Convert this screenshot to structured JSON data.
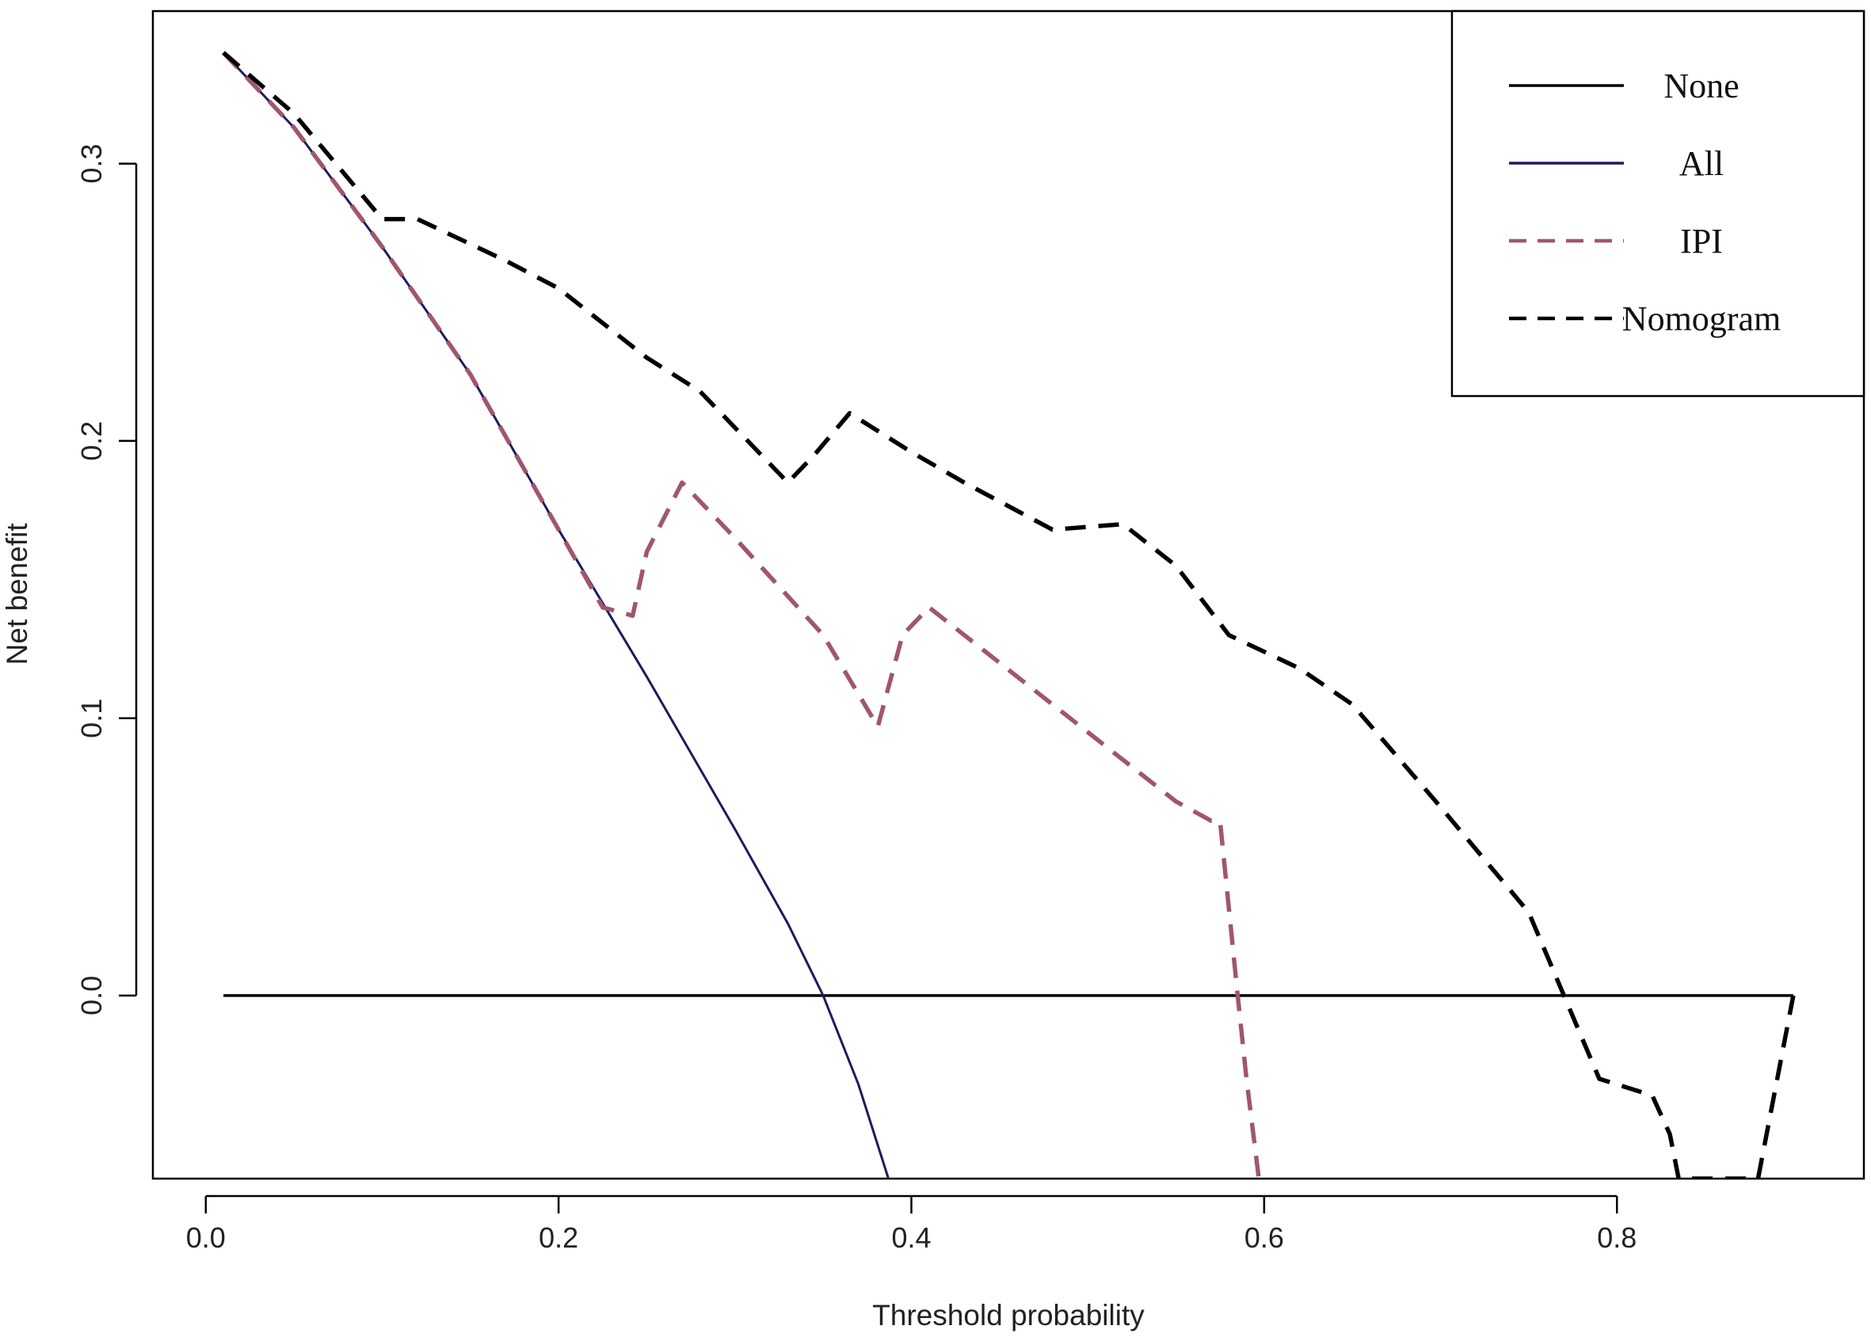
{
  "chart_data": {
    "type": "line",
    "title": "",
    "xlabel": "Threshold probability",
    "ylabel": "Net benefit",
    "xlim": [
      -0.03,
      0.94
    ],
    "ylim": [
      -0.066,
      0.355
    ],
    "x_ticks": [
      0.0,
      0.2,
      0.4,
      0.6,
      0.8
    ],
    "x_tick_labels": [
      "0.0",
      "0.2",
      "0.4",
      "0.6",
      "0.8"
    ],
    "y_ticks": [
      0.0,
      0.1,
      0.2,
      0.3
    ],
    "y_tick_labels": [
      "0.0",
      "0.1",
      "0.2",
      "0.3"
    ],
    "grid": false,
    "legend_position": "top-right",
    "series": [
      {
        "name": "None",
        "color": "#000000",
        "dash": "solid",
        "x": [
          0.01,
          0.9
        ],
        "y": [
          0.0,
          0.0
        ]
      },
      {
        "name": "All",
        "color": "#1c1c5e",
        "dash": "solid",
        "x": [
          0.01,
          0.05,
          0.1,
          0.15,
          0.2,
          0.25,
          0.3,
          0.33,
          0.35,
          0.37,
          0.387
        ],
        "y": [
          0.34,
          0.313,
          0.27,
          0.224,
          0.168,
          0.115,
          0.06,
          0.026,
          0.0,
          -0.032,
          -0.066
        ]
      },
      {
        "name": "IPI",
        "color": "#a0566e",
        "dash": "dashed",
        "x": [
          0.01,
          0.05,
          0.1,
          0.15,
          0.2,
          0.225,
          0.242,
          0.25,
          0.27,
          0.3,
          0.35,
          0.381,
          0.395,
          0.41,
          0.45,
          0.5,
          0.55,
          0.57,
          0.575,
          0.585,
          0.59,
          0.597
        ],
        "y": [
          0.34,
          0.313,
          0.27,
          0.224,
          0.168,
          0.14,
          0.137,
          0.16,
          0.185,
          0.165,
          0.13,
          0.097,
          0.13,
          0.14,
          0.12,
          0.095,
          0.07,
          0.063,
          0.063,
          0.0,
          -0.03,
          -0.066
        ]
      },
      {
        "name": "Nomogram",
        "color": "#000000",
        "dash": "dashed",
        "x": [
          0.01,
          0.05,
          0.1,
          0.12,
          0.17,
          0.2,
          0.25,
          0.28,
          0.33,
          0.345,
          0.365,
          0.4,
          0.43,
          0.48,
          0.52,
          0.55,
          0.58,
          0.62,
          0.65,
          0.7,
          0.75,
          0.77,
          0.79,
          0.82,
          0.83,
          0.835,
          0.88,
          0.9
        ],
        "y": [
          0.34,
          0.318,
          0.28,
          0.28,
          0.265,
          0.255,
          0.23,
          0.218,
          0.185,
          0.195,
          0.21,
          0.196,
          0.185,
          0.168,
          0.17,
          0.155,
          0.13,
          0.118,
          0.105,
          0.068,
          0.03,
          0.0,
          -0.03,
          -0.036,
          -0.05,
          -0.066,
          -0.066,
          0.0
        ]
      }
    ]
  }
}
